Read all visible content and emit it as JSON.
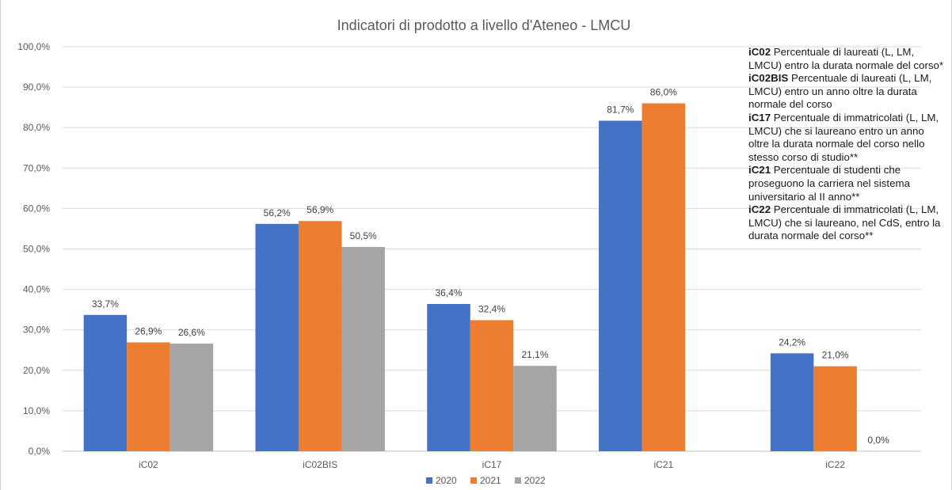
{
  "chart_data": {
    "type": "bar",
    "title": "Indicatori di prodotto a livello d'Ateneo - LMCU",
    "categories": [
      "iC02",
      "iC02BIS",
      "iC17",
      "iC21",
      "iC22"
    ],
    "series": [
      {
        "name": "2020",
        "color": "#4472C4",
        "values": [
          33.7,
          56.2,
          36.4,
          81.7,
          24.2
        ],
        "labels": [
          "33,7%",
          "56,2%",
          "36,4%",
          "81,7%",
          "24,2%"
        ]
      },
      {
        "name": "2021",
        "color": "#ED7D31",
        "values": [
          26.9,
          56.9,
          32.4,
          86.0,
          21.0
        ],
        "labels": [
          "26,9%",
          "56,9%",
          "32,4%",
          "86,0%",
          "21,0%"
        ]
      },
      {
        "name": "2022",
        "color": "#A5A5A5",
        "values": [
          26.6,
          50.5,
          21.1,
          null,
          0.0
        ],
        "labels": [
          "26,6%",
          "50,5%",
          "21,1%",
          null,
          "0,0%"
        ]
      }
    ],
    "ylim": [
      0,
      100
    ],
    "yticks": [
      "0,0%",
      "10,0%",
      "20,0%",
      "30,0%",
      "40,0%",
      "50,0%",
      "60,0%",
      "70,0%",
      "80,0%",
      "90,0%",
      "100,0%"
    ],
    "xlabel": "",
    "ylabel": "",
    "grid": true,
    "legend_position": "bottom"
  },
  "notes": [
    {
      "code": "iC02",
      "text": " Percentuale di laureati (L, LM, LMCU) entro la durata normale del corso*"
    },
    {
      "code": "iC02BIS",
      "text": " Percentuale di laureati (L, LM, LMCU) entro un anno oltre la durata normale del corso"
    },
    {
      "code": "iC17",
      "text": " Percentuale di immatricolati (L, LM, LMCU) che si laureano entro un anno oltre la durata normale del corso nello stesso corso di studio**"
    },
    {
      "code": "iC21",
      "text": " Percentuale di studenti che proseguono la carriera nel sistema universitario al II anno**"
    },
    {
      "code": "iC22",
      "text": " Percentuale di immatricolati (L, LM, LMCU) che si laureano, nel CdS, entro la durata normale del corso**"
    }
  ]
}
